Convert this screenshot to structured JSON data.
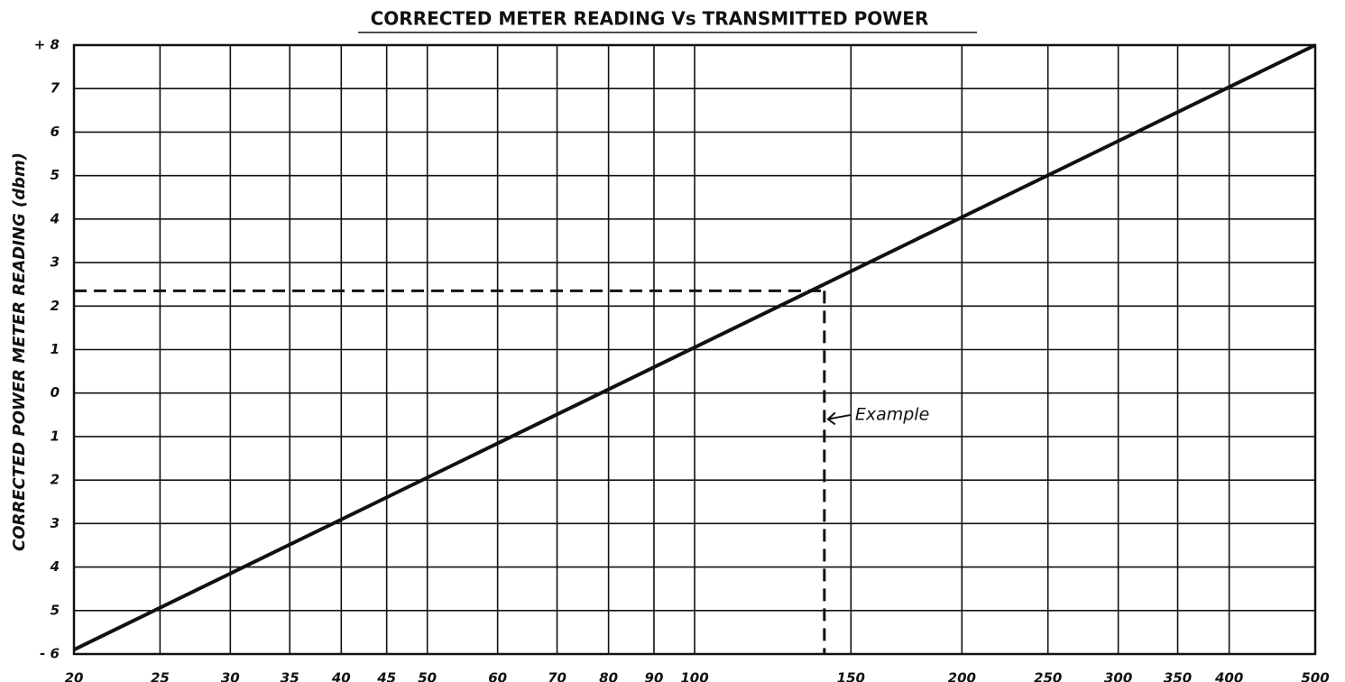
{
  "chart_data": {
    "type": "line",
    "title": "CORRECTED METER READING Vs TRANSMITTED POWER",
    "y_label": "CORRECTED POWER METER READING (dbm)",
    "x": [
      20,
      500
    ],
    "series": [
      {
        "name": "Corrected meter reading",
        "color": "#111111",
        "values": [
          -5.9,
          8
        ]
      }
    ],
    "xlim": [
      20,
      500
    ],
    "x_log": true,
    "xticks": [
      20,
      25,
      30,
      35,
      40,
      45,
      50,
      60,
      70,
      80,
      90,
      100,
      150,
      200,
      250,
      300,
      350,
      400,
      500
    ],
    "ylim": [
      -6,
      8
    ],
    "yticks": [
      {
        "value": 8,
        "label": "+ 8"
      },
      7,
      6,
      5,
      4,
      3,
      2,
      1,
      0,
      {
        "value": -1,
        "label": "1"
      },
      {
        "value": -2,
        "label": "2"
      },
      {
        "value": -3,
        "label": "3"
      },
      {
        "value": -4,
        "label": "4"
      },
      {
        "value": -5,
        "label": "5"
      },
      {
        "value": -6,
        "label": "- 6"
      }
    ],
    "grid": true,
    "example": {
      "x": 140,
      "y": 2.35,
      "label": "Example"
    }
  }
}
